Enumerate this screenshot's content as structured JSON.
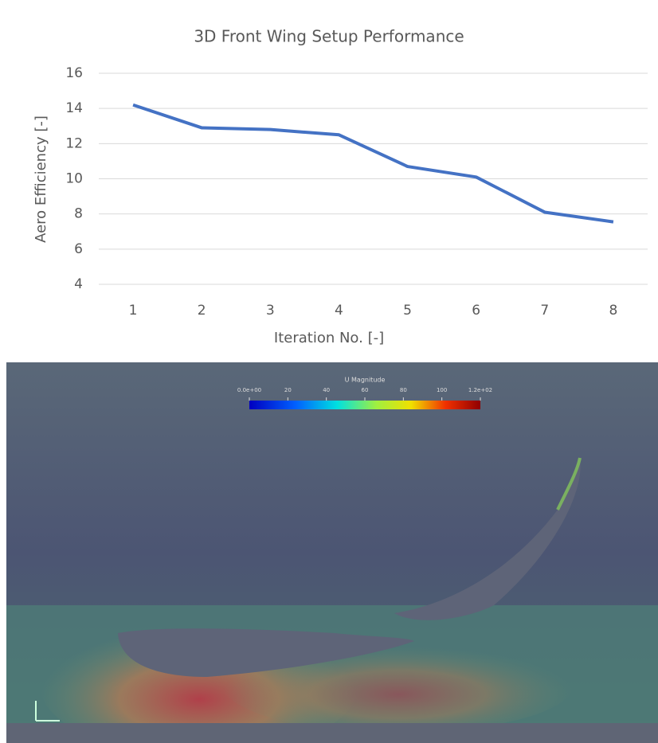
{
  "chart_data": {
    "type": "line",
    "title": "3D Front Wing Setup Performance",
    "x_label": "Iteration No. [-]",
    "y_label": "Aero Efficiency [-]",
    "categories": [
      "1",
      "2",
      "3",
      "4",
      "5",
      "6",
      "7",
      "8"
    ],
    "values": [
      14.2,
      12.9,
      12.8,
      12.5,
      10.7,
      10.1,
      8.1,
      7.55
    ],
    "color": "#4472c4",
    "ylim": [
      4,
      16
    ],
    "yticks": [
      4,
      6,
      8,
      10,
      12,
      14,
      16
    ],
    "grid": true
  },
  "colorbar": {
    "title": "U Magnitude",
    "lim": [
      0,
      120
    ],
    "ticks": [
      {
        "value": 0,
        "label": "0.0e+00"
      },
      20,
      40,
      60,
      80,
      100,
      {
        "value": 120,
        "label": "1.2e+02"
      }
    ]
  }
}
